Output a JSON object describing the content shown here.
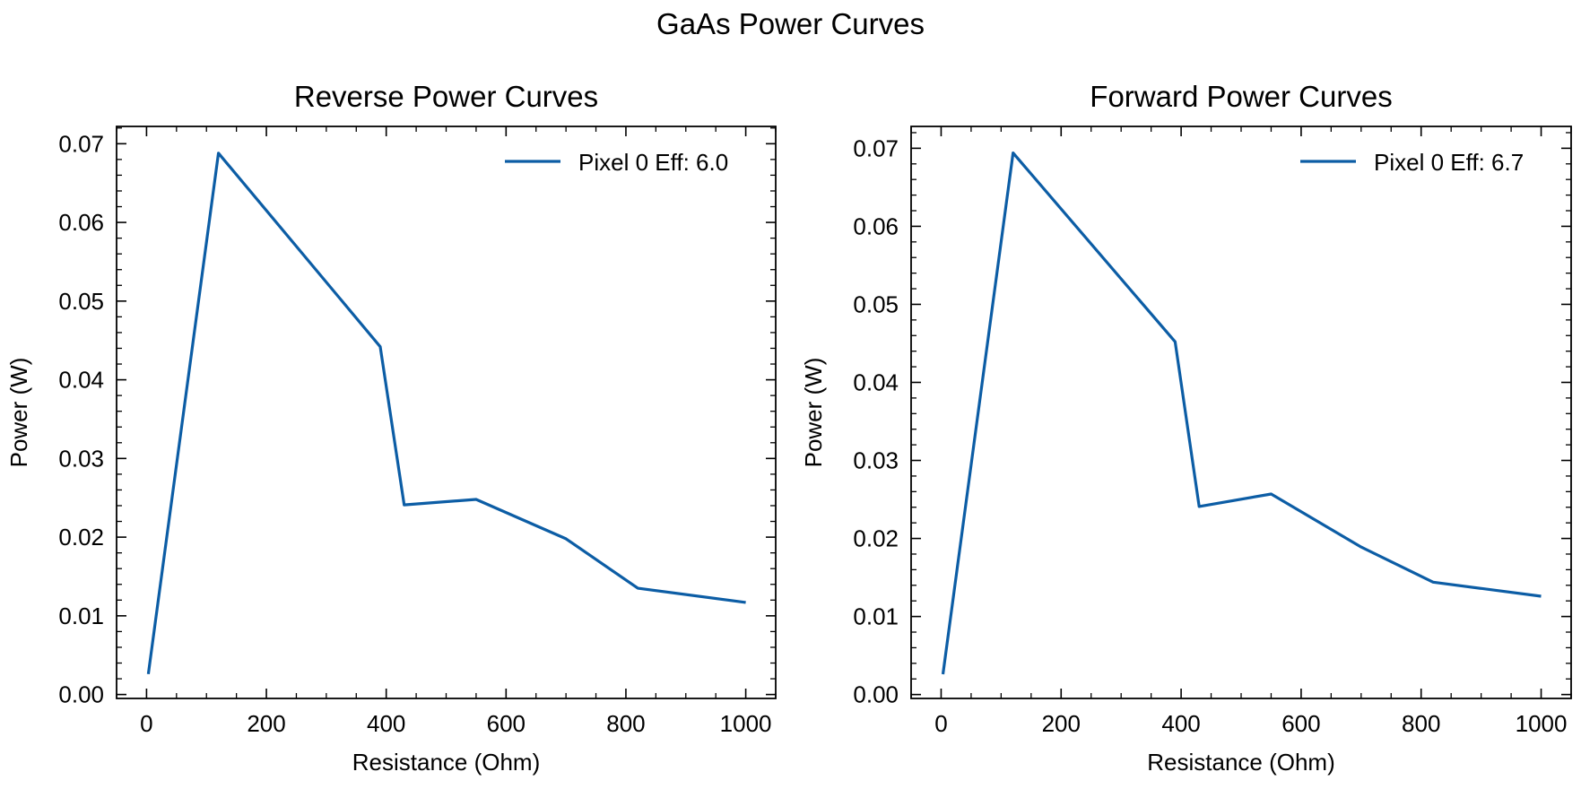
{
  "figure": {
    "suptitle": "GaAs Power Curves",
    "line_color": "#0C5DA5"
  },
  "chart_data": [
    {
      "type": "line",
      "title": "Reverse Power Curves",
      "xlabel": "Resistance (Ohm)",
      "ylabel": "Power (W)",
      "xlim": [
        -50,
        1050
      ],
      "ylim": [
        -0.0005,
        0.0722
      ],
      "xticks": [
        0,
        200,
        400,
        600,
        800,
        1000
      ],
      "yticks": [
        0.0,
        0.01,
        0.02,
        0.03,
        0.04,
        0.05,
        0.06,
        0.07
      ],
      "ytick_labels": [
        "0.00",
        "0.01",
        "0.02",
        "0.03",
        "0.04",
        "0.05",
        "0.06",
        "0.07"
      ],
      "grid": false,
      "legend_position": "upper right",
      "series": [
        {
          "name": "Pixel 0 Eff: 6.0",
          "x": [
            3,
            120,
            390,
            430,
            550,
            700,
            820,
            1000
          ],
          "y": [
            0.0026,
            0.0688,
            0.0442,
            0.0241,
            0.0248,
            0.0198,
            0.0135,
            0.0117
          ]
        }
      ]
    },
    {
      "type": "line",
      "title": "Forward Power Curves",
      "xlabel": "Resistance (Ohm)",
      "ylabel": "Power (W)",
      "xlim": [
        -50,
        1050
      ],
      "ylim": [
        -0.0005,
        0.0728
      ],
      "xticks": [
        0,
        200,
        400,
        600,
        800,
        1000
      ],
      "yticks": [
        0.0,
        0.01,
        0.02,
        0.03,
        0.04,
        0.05,
        0.06,
        0.07
      ],
      "ytick_labels": [
        "0.00",
        "0.01",
        "0.02",
        "0.03",
        "0.04",
        "0.05",
        "0.06",
        "0.07"
      ],
      "grid": false,
      "legend_position": "upper right",
      "series": [
        {
          "name": "Pixel 0 Eff: 6.7",
          "x": [
            3,
            120,
            390,
            430,
            550,
            700,
            820,
            1000
          ],
          "y": [
            0.0026,
            0.0694,
            0.0452,
            0.0241,
            0.0257,
            0.0189,
            0.0144,
            0.0126
          ]
        }
      ]
    }
  ]
}
